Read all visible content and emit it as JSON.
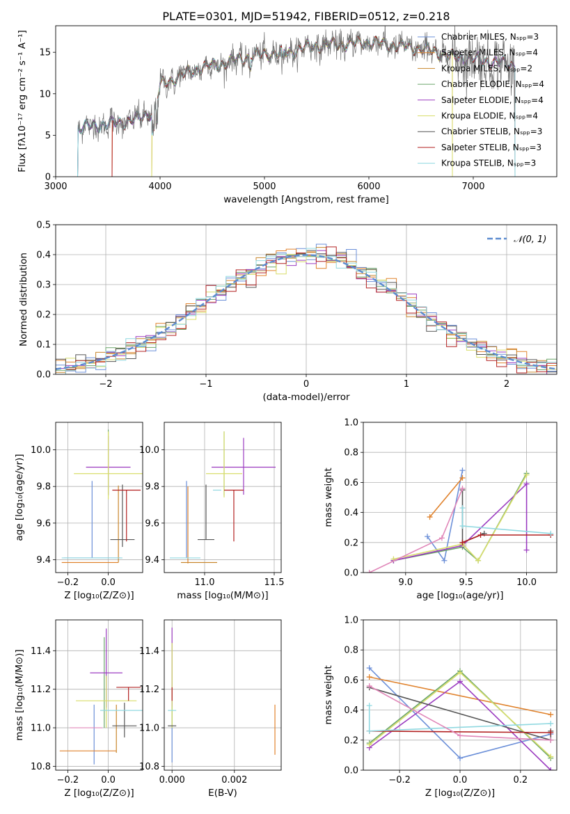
{
  "figure_title": "PLATE=0301, MJD=51942, FIBERID=0512, z=0.218",
  "colors": {
    "series": [
      "#6b8fd8",
      "#e0822c",
      "#c8862c",
      "#6aa56a",
      "#9b3bc0",
      "#d8de6a",
      "#555555",
      "#b22020",
      "#8fd8e0"
    ],
    "gaussian": "#5b8bd0",
    "pink": "#e086b8",
    "grid": "#b0b0b0",
    "data_gray": "#707070"
  },
  "chart_data": [
    {
      "id": "spectrum",
      "type": "line",
      "xlabel": "wavelength [Angstrom, rest frame]",
      "ylabel": "Flux [fλ10⁻¹⁷ erg cm⁻² s⁻¹ A⁻¹]",
      "xlim": [
        3000,
        7800
      ],
      "ylim": [
        0,
        18.2
      ],
      "xticks": [
        3000,
        4000,
        5000,
        6000,
        7000
      ],
      "yticks": [
        0,
        5,
        10,
        15
      ],
      "legend_position": "upper-right",
      "legend": [
        {
          "label": "Chabrier MILES, Nₛₚₚ=3",
          "color": "#6b8fd8"
        },
        {
          "label": "Salpeter MILES, Nₛₚₚ=4",
          "color": "#e0822c"
        },
        {
          "label": "Kroupa MILES, Nₛₚₚ=2",
          "color": "#c8862c"
        },
        {
          "label": "Chabrier ELODIE, Nₛₚₚ=4",
          "color": "#6aa56a"
        },
        {
          "label": "Salpeter ELODIE, Nₛₚₚ=4",
          "color": "#9b3bc0"
        },
        {
          "label": "Kroupa ELODIE, Nₛₚₚ=4",
          "color": "#d8de6a"
        },
        {
          "label": "Chabrier STELIB, Nₛₚₚ=3",
          "color": "#555555"
        },
        {
          "label": "Salpeter STELIB, Nₛₚₚ=3",
          "color": "#b22020"
        },
        {
          "label": "Kroupa STELIB, Nₛₚₚ=3",
          "color": "#8fd8e0"
        }
      ],
      "continuum": [
        [
          3220,
          5.9
        ],
        [
          3400,
          6.2
        ],
        [
          3600,
          6.5
        ],
        [
          3800,
          7.0
        ],
        [
          3950,
          8.0
        ],
        [
          4000,
          11.0
        ],
        [
          4200,
          12.2
        ],
        [
          4400,
          13.2
        ],
        [
          4600,
          13.6
        ],
        [
          4800,
          14.3
        ],
        [
          5000,
          14.8
        ],
        [
          5200,
          14.9
        ],
        [
          5400,
          15.6
        ],
        [
          5600,
          15.9
        ],
        [
          5800,
          16.0
        ],
        [
          6000,
          16.2
        ],
        [
          6200,
          15.9
        ],
        [
          6400,
          15.6
        ],
        [
          6600,
          15.2
        ],
        [
          6800,
          14.4
        ],
        [
          7000,
          14.2
        ],
        [
          7200,
          13.8
        ],
        [
          7400,
          13.5
        ]
      ],
      "model_start_wavelengths": [
        3210,
        3540,
        3920,
        3210,
        3210,
        3920,
        3210,
        3540,
        3210
      ],
      "model_end_wavelengths": [
        7400,
        7400,
        6800,
        7400,
        7400,
        6800,
        7400,
        7400,
        7400
      ]
    },
    {
      "id": "residual-histogram",
      "type": "histogram",
      "xlabel": "(data-model)/error",
      "ylabel": "Normed distribution",
      "xlim": [
        -2.5,
        2.5
      ],
      "ylim": [
        0,
        0.5
      ],
      "xticks": [
        -2,
        -1,
        0,
        1,
        2
      ],
      "yticks": [
        0.0,
        0.1,
        0.2,
        0.3,
        0.4,
        0.5
      ],
      "bin_width": 0.1,
      "legend_position": "upper-right",
      "legend": [
        {
          "label": "𝒩(0, 1)",
          "style": "dashed"
        }
      ],
      "gaussian": {
        "mean": 0,
        "sigma": 1
      }
    },
    {
      "id": "age-vs-z",
      "type": "errorbar",
      "xlabel": "Z [log₁₀(Z/Z⊙)]",
      "ylabel": "age  [log₁₀(age/yr)]",
      "xlim": [
        -0.26,
        0.17
      ],
      "ylim": [
        9.33,
        10.15
      ],
      "xticks": [
        -0.2,
        0.0
      ],
      "yticks": [
        9.4,
        9.6,
        9.8,
        10.0
      ],
      "points": [
        {
          "x": -0.08,
          "xerr": 0.14,
          "y": 9.41,
          "yerr": [
            0.0,
            0.42
          ],
          "c": 0
        },
        {
          "x": -0.09,
          "xerr": 0.14,
          "y": 9.385,
          "yerr": [
            0.0,
            0.0
          ],
          "c": 1
        },
        {
          "x": 0.05,
          "xerr": 0.0,
          "y": 9.385,
          "yerr": [
            0.0,
            0.42
          ],
          "c": 2
        },
        {
          "x": 0.0,
          "xerr": 0.0,
          "y": 9.87,
          "yerr": [
            0.12,
            0.24
          ],
          "c": 3
        },
        {
          "x": 0.0,
          "xerr": 0.11,
          "y": 9.905,
          "yerr": [
            0.15,
            0.17
          ],
          "c": 4
        },
        {
          "x": 0.0,
          "xerr": 0.17,
          "y": 9.87,
          "yerr": [
            0.14,
            0.23
          ],
          "c": 5
        },
        {
          "x": 0.07,
          "xerr": 0.06,
          "y": 9.51,
          "yerr": [
            0.04,
            0.3
          ],
          "c": 6
        },
        {
          "x": 0.09,
          "xerr": 0.07,
          "y": 9.78,
          "yerr": [
            0.28,
            0.0
          ],
          "c": 7
        },
        {
          "x": -0.08,
          "xerr": 0.15,
          "y": 9.41,
          "yerr": [
            0.0,
            0.0
          ],
          "c": 8
        }
      ]
    },
    {
      "id": "age-vs-mass",
      "type": "errorbar",
      "xlabel": "mass [log₁₀(M/M⊙)]",
      "ylabel": "",
      "xlim": [
        10.71,
        11.55
      ],
      "ylim": [
        9.33,
        10.15
      ],
      "xticks": [
        11.0,
        11.5
      ],
      "yticks": [
        9.4,
        9.6,
        9.8,
        10.0
      ],
      "points": [
        {
          "x": 10.87,
          "xerr": 0.0,
          "y": 9.41,
          "yerr": [
            0.0,
            0.42
          ],
          "c": 0
        },
        {
          "x": 10.88,
          "xerr": 0.0,
          "y": 9.38,
          "yerr": [
            0.0,
            0.42
          ],
          "c": 1
        },
        {
          "x": 10.96,
          "xerr": 0.13,
          "y": 9.385,
          "yerr": [
            0.0,
            0.0
          ],
          "c": 2
        },
        {
          "x": 11.14,
          "xerr": 0.0,
          "y": 9.87,
          "yerr": [
            0.12,
            0.23
          ],
          "c": 3
        },
        {
          "x": 11.28,
          "xerr": 0.23,
          "y": 9.905,
          "yerr": [
            0.15,
            0.16
          ],
          "c": 4
        },
        {
          "x": 11.14,
          "xerr": 0.13,
          "y": 9.87,
          "yerr": [
            0.13,
            0.23
          ],
          "c": 5
        },
        {
          "x": 11.01,
          "xerr": 0.06,
          "y": 9.51,
          "yerr": [
            0.0,
            0.3
          ],
          "c": 6
        },
        {
          "x": 11.21,
          "xerr": 0.07,
          "y": 9.78,
          "yerr": [
            0.28,
            0.0
          ],
          "c": 7
        },
        {
          "x": 11.09,
          "xerr": 0.0,
          "y": 9.78,
          "yerr": [
            0.0,
            0.0
          ],
          "c": 8
        },
        {
          "x": 10.86,
          "xerr": 0.11,
          "y": 9.41,
          "yerr": [
            0.0,
            0.0
          ],
          "c": 8
        }
      ]
    },
    {
      "id": "massweight-vs-age",
      "type": "line",
      "xlabel": "age  [log₁₀(age/yr)]",
      "ylabel": "mass weight",
      "xlim": [
        8.65,
        10.25
      ],
      "ylim": [
        0.0,
        1.0
      ],
      "xticks": [
        9.0,
        9.5,
        10.0
      ],
      "yticks": [
        0.0,
        0.2,
        0.4,
        0.6,
        0.8,
        1.0
      ],
      "series": [
        {
          "c": 0,
          "x": [
            9.18,
            9.32,
            9.47
          ],
          "y": [
            0.24,
            0.08,
            0.68
          ]
        },
        {
          "c": 1,
          "x": [
            9.2,
            9.47
          ],
          "y": [
            0.37,
            0.63
          ]
        },
        {
          "c": 3,
          "x": [
            8.9,
            9.47,
            9.6,
            10.0
          ],
          "y": [
            0.08,
            0.17,
            0.08,
            0.66
          ]
        },
        {
          "c": 4,
          "x": [
            8.9,
            9.47,
            10.0,
            10.0
          ],
          "y": [
            0.08,
            0.18,
            0.59,
            0.15
          ]
        },
        {
          "c": 5,
          "x": [
            8.9,
            9.47,
            9.6,
            10.0
          ],
          "y": [
            0.09,
            0.19,
            0.08,
            0.65
          ]
        },
        {
          "c": 6,
          "x": [
            9.47,
            9.47,
            9.65
          ],
          "y": [
            0.55,
            0.2,
            0.26
          ]
        },
        {
          "c": 7,
          "x": [
            9.47,
            9.62,
            10.2
          ],
          "y": [
            0.2,
            0.25,
            0.25
          ]
        },
        {
          "c": 8,
          "x": [
            9.47,
            9.47,
            10.2
          ],
          "y": [
            0.43,
            0.31,
            0.26
          ]
        },
        {
          "c": "pink",
          "x": [
            8.7,
            9.3,
            9.47
          ],
          "y": [
            0.0,
            0.23,
            0.56
          ]
        }
      ]
    },
    {
      "id": "mass-vs-z",
      "type": "errorbar",
      "xlabel": "Z [log₁₀(Z/Z⊙)]",
      "ylabel": "mass [log₁₀(M/M⊙)]",
      "xlim": [
        -0.26,
        0.17
      ],
      "ylim": [
        10.78,
        11.56
      ],
      "xticks": [
        -0.2,
        0.0
      ],
      "yticks": [
        10.8,
        11.0,
        11.2,
        11.4
      ],
      "points": [
        {
          "x": -0.07,
          "xerr": 0.0,
          "y": 10.87,
          "yerr": [
            0.06,
            0.25
          ],
          "c": 0
        },
        {
          "x": -0.1,
          "xerr": 0.14,
          "y": 10.88,
          "yerr": [
            0.0,
            0.0
          ],
          "c": 1
        },
        {
          "x": 0.04,
          "xerr": 0.0,
          "y": 10.87,
          "yerr": [
            0.0,
            0.25
          ],
          "c": 2
        },
        {
          "x": -0.02,
          "xerr": 0.0,
          "y": 11.14,
          "yerr": [
            0.14,
            0.33
          ],
          "c": 3
        },
        {
          "x": -0.01,
          "xerr": 0.08,
          "y": 11.285,
          "yerr": [
            0.18,
            0.23
          ],
          "c": 4
        },
        {
          "x": -0.01,
          "xerr": 0.15,
          "y": 11.14,
          "yerr": [
            0.14,
            0.13
          ],
          "c": 5
        },
        {
          "x": 0.08,
          "xerr": 0.06,
          "y": 11.01,
          "yerr": [
            0.06,
            0.12
          ],
          "c": 6
        },
        {
          "x": 0.1,
          "xerr": 0.06,
          "y": 11.21,
          "yerr": [
            0.07,
            0.0
          ],
          "c": 7
        },
        {
          "x": 0.1,
          "xerr": 0.14,
          "y": 11.09,
          "yerr": [
            0.0,
            0.0
          ],
          "c": 8
        },
        {
          "x": -0.11,
          "xerr": 0.08,
          "y": 11.0,
          "yerr": [
            0.0,
            0.0
          ],
          "c": "pink"
        }
      ]
    },
    {
      "id": "mass-vs-ebv",
      "type": "errorbar",
      "xlabel": "E(B-V)",
      "ylabel": "",
      "xlim": [
        -0.00025,
        0.0035
      ],
      "ylim": [
        10.78,
        11.56
      ],
      "xticks": [
        0.0,
        0.002
      ],
      "xtick_labels": [
        "0.000",
        "0.002"
      ],
      "yticks": [
        10.8,
        11.0,
        11.2,
        11.4
      ],
      "points": [
        {
          "x": 0.0,
          "xerr": 0.0,
          "y": 10.88,
          "yerr": [
            0.06,
            0.25
          ],
          "c": 0
        },
        {
          "x": 0.0,
          "xerr": 0.0,
          "y": 11.14,
          "yerr": [
            0.14,
            0.3
          ],
          "c": 3
        },
        {
          "x": 0.0,
          "xerr": 0.0,
          "y": 11.29,
          "yerr": [
            0.18,
            0.23
          ],
          "c": 4
        },
        {
          "x": 0.0,
          "xerr": 0.0,
          "y": 11.14,
          "yerr": [
            0.14,
            0.3
          ],
          "c": 5
        },
        {
          "x": 0.0,
          "xerr": 0.0,
          "y": 11.01,
          "yerr": [
            0.0,
            0.0
          ],
          "c": 6
        },
        {
          "x": 0.0,
          "xerr": 0.0,
          "y": 11.21,
          "yerr": [
            0.07,
            0.0
          ],
          "c": 7
        },
        {
          "x": 0.0,
          "xerr": 0.0,
          "y": 11.09,
          "yerr": [
            0.0,
            0.0
          ],
          "c": 8
        },
        {
          "x": 0.0033,
          "xerr": 0.0,
          "y": 11.0,
          "yerr": [
            0.14,
            0.12
          ],
          "c": 1
        }
      ]
    },
    {
      "id": "massweight-vs-z",
      "type": "line",
      "xlabel": "Z [log₁₀(Z/Z⊙)]",
      "ylabel": "mass weight",
      "xlim": [
        -0.32,
        0.32
      ],
      "ylim": [
        0.0,
        1.0
      ],
      "xticks": [
        -0.2,
        0.0,
        0.2
      ],
      "yticks": [
        0.0,
        0.2,
        0.4,
        0.6,
        0.8,
        1.0
      ],
      "series": [
        {
          "c": 0,
          "x": [
            -0.3,
            0.0,
            0.3
          ],
          "y": [
            0.68,
            0.08,
            0.24
          ]
        },
        {
          "c": 1,
          "x": [
            -0.3,
            0.3
          ],
          "y": [
            0.62,
            0.37
          ]
        },
        {
          "c": 3,
          "x": [
            -0.3,
            0.0,
            0.3
          ],
          "y": [
            0.18,
            0.66,
            0.08
          ]
        },
        {
          "c": 4,
          "x": [
            -0.3,
            0.0,
            0.3
          ],
          "y": [
            0.15,
            0.59,
            0.0
          ]
        },
        {
          "c": 5,
          "x": [
            -0.3,
            0.0,
            0.3
          ],
          "y": [
            0.17,
            0.65,
            0.09
          ]
        },
        {
          "c": 6,
          "x": [
            -0.3,
            0.3,
            0.3
          ],
          "y": [
            0.55,
            0.2,
            0.26
          ]
        },
        {
          "c": 7,
          "x": [
            -0.3,
            0.3
          ],
          "y": [
            0.26,
            0.25
          ]
        },
        {
          "c": 8,
          "x": [
            -0.3,
            -0.3,
            0.3
          ],
          "y": [
            0.43,
            0.26,
            0.31
          ]
        },
        {
          "c": "pink",
          "x": [
            -0.3,
            0.0,
            0.3
          ],
          "y": [
            0.56,
            0.23,
            0.2
          ]
        }
      ]
    }
  ]
}
